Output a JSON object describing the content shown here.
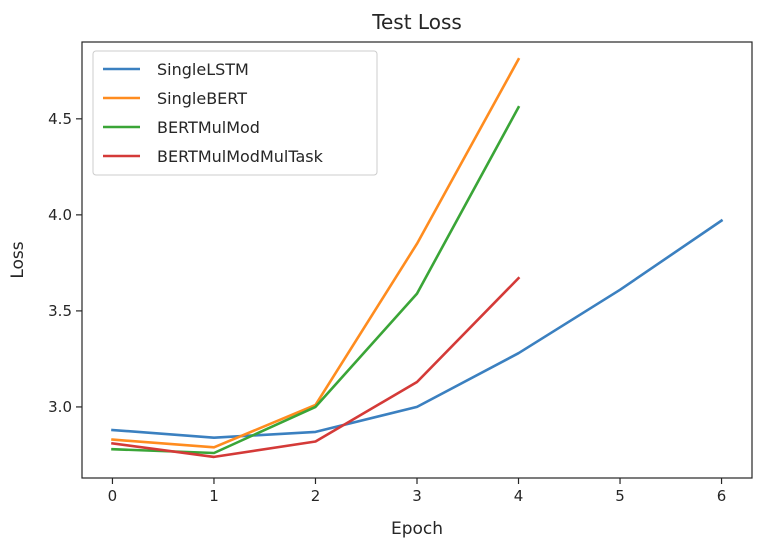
{
  "chart_data": {
    "type": "line",
    "title": "Test Loss",
    "xlabel": "Epoch",
    "ylabel": "Loss",
    "xlim": [
      -0.3,
      6.3
    ],
    "ylim": [
      2.63,
      4.9
    ],
    "xticks": [
      0,
      1,
      2,
      3,
      4,
      5,
      6
    ],
    "yticks": [
      3.0,
      3.5,
      4.0,
      4.5
    ],
    "ytick_labels": [
      "3.0",
      "3.5",
      "4.0",
      "4.5"
    ],
    "grid": false,
    "legend_position": "upper-left",
    "series": [
      {
        "name": "SingleLSTM",
        "color": "#3b80c0",
        "x": [
          0,
          1,
          2,
          3,
          4,
          5,
          6
        ],
        "y": [
          2.88,
          2.84,
          2.87,
          3.0,
          3.28,
          3.61,
          3.97
        ]
      },
      {
        "name": "SingleBERT",
        "color": "#ff8c1f",
        "x": [
          0,
          1,
          2,
          3,
          4
        ],
        "y": [
          2.83,
          2.79,
          3.01,
          3.85,
          4.81
        ]
      },
      {
        "name": "BERTMulMod",
        "color": "#3aa537",
        "x": [
          0,
          1,
          2,
          3,
          4
        ],
        "y": [
          2.78,
          2.76,
          3.0,
          3.59,
          4.56
        ]
      },
      {
        "name": "BERTMulModMulTask",
        "color": "#d43a38",
        "x": [
          0,
          1,
          2,
          3,
          4
        ],
        "y": [
          2.81,
          2.74,
          2.82,
          3.13,
          3.67
        ]
      }
    ]
  }
}
